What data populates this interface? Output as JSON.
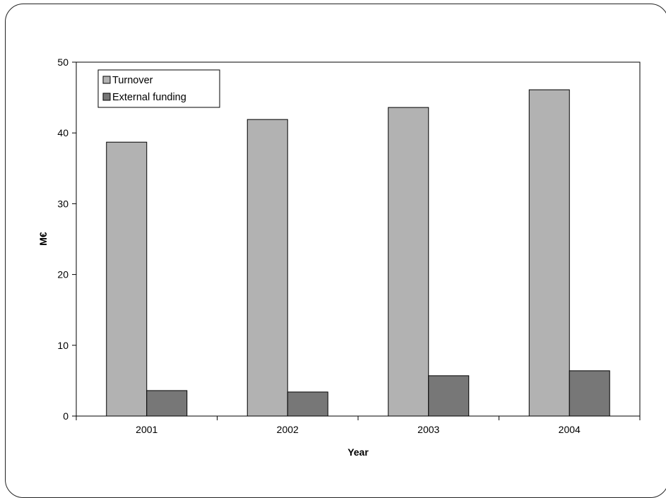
{
  "chart_data": {
    "type": "bar",
    "categories": [
      "2001",
      "2002",
      "2003",
      "2004"
    ],
    "series": [
      {
        "name": "Turnover",
        "values": [
          38.7,
          41.9,
          43.6,
          46.1
        ],
        "color": "#b2b2b2"
      },
      {
        "name": "External funding",
        "values": [
          3.6,
          3.4,
          5.7,
          6.4
        ],
        "color": "#777777"
      }
    ],
    "xlabel": "Year",
    "ylabel": "M€",
    "ylim": [
      0,
      50
    ],
    "yticks": [
      0,
      10,
      20,
      30,
      40,
      50
    ],
    "grid": false,
    "legend": "top-left"
  }
}
